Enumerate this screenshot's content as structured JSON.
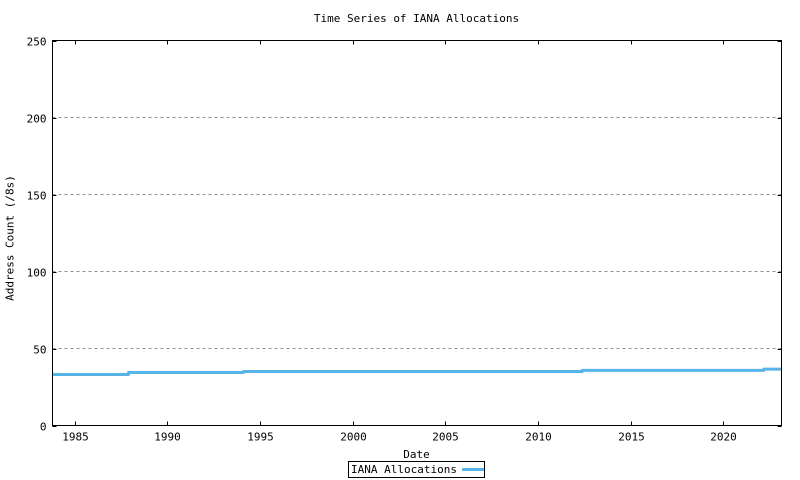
{
  "title": "Time Series of IANA Allocations",
  "colors": {
    "line": "#56B4E9",
    "grid": "#909090",
    "frame": "#000000",
    "background": "#ffffff"
  },
  "legend": {
    "label": "IANA Allocations",
    "position": "below-x-axis-label",
    "border": true
  },
  "chart_data": {
    "type": "line",
    "title": "Time Series of IANA Allocations",
    "xlabel": "Date",
    "ylabel": "Address Count (/8s)",
    "xlim": [
      1983.8,
      2023.15
    ],
    "ylim": [
      0,
      250
    ],
    "xticks": [
      1985,
      1990,
      1995,
      2000,
      2005,
      2010,
      2015,
      2020
    ],
    "yticks": [
      0,
      50,
      100,
      150,
      200,
      250
    ],
    "grid": "horizontal dashed gray, at y = 50/100/150/200",
    "legend_position": "bottom center, boxed, below xlabel",
    "series": [
      {
        "name": "IANA Allocations",
        "color": "#56B4E9",
        "line_width": 3,
        "style": "step",
        "points": [
          [
            1983.8,
            33.1
          ],
          [
            1987.9,
            33.1
          ],
          [
            1987.9,
            34.4
          ],
          [
            1994.1,
            34.4
          ],
          [
            1994.1,
            35.1
          ],
          [
            2012.4,
            35.1
          ],
          [
            2012.4,
            35.8
          ],
          [
            2022.2,
            35.8
          ],
          [
            2022.2,
            36.6
          ],
          [
            2023.15,
            36.6
          ]
        ]
      }
    ]
  }
}
